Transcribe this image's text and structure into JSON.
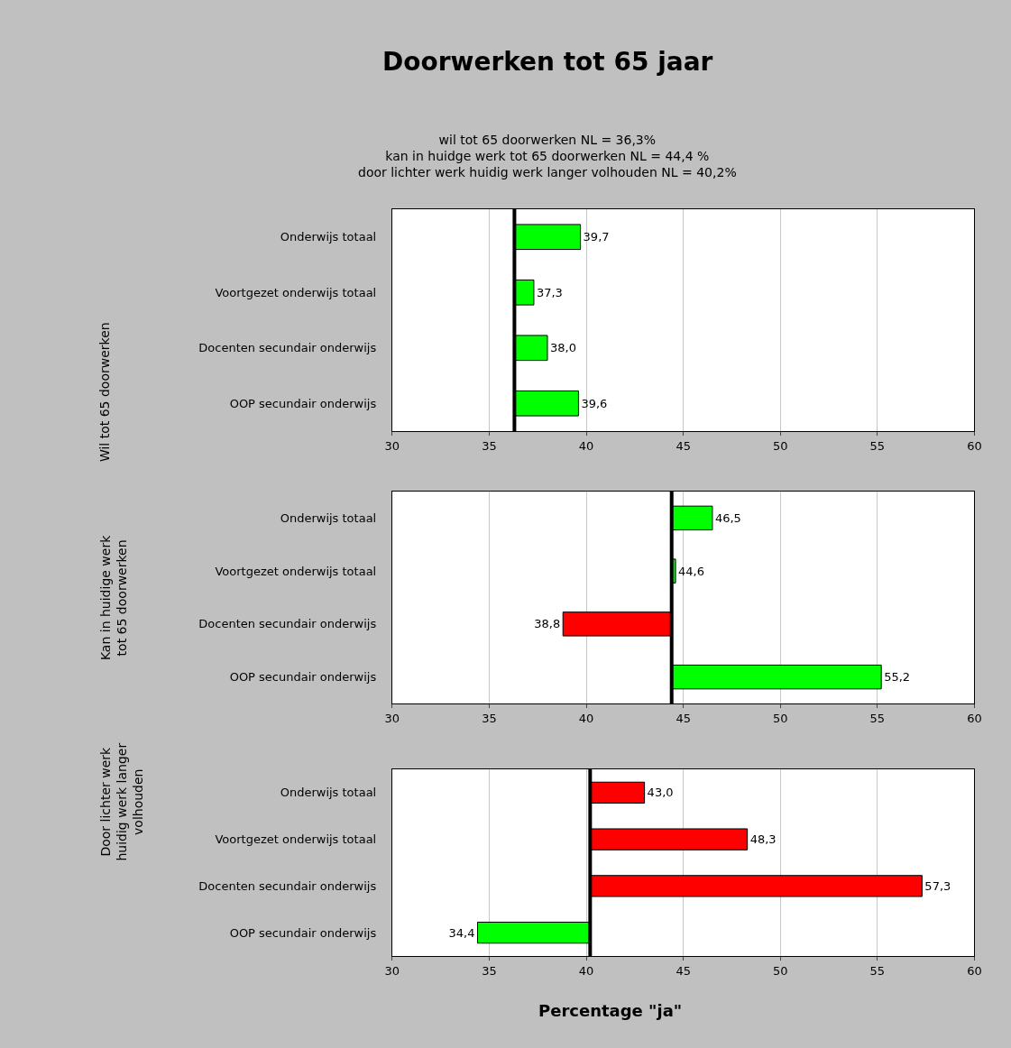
{
  "chart_data": [
    {
      "type": "bar",
      "orientation": "horizontal",
      "title": "Doorwerken tot 65 jaar",
      "subtitle": "wil tot 65 doorwerken NL = 36,3%\nkan in huidge werk tot 65 doorwerken NL = 44,4 %\ndoor lichter werk huidig werk langer volhouden NL = 40,2%",
      "ylabel": "Wil tot 65 doorwerken",
      "categories": [
        "Onderwijs totaal",
        "Voortgezet onderwijs totaal",
        "Docenten secundair onderwijs",
        "OOP secundair onderwijs"
      ],
      "base": [
        36.3,
        36.3,
        36.3,
        36.3
      ],
      "values": [
        3.4,
        1.0,
        1.7,
        3.3
      ],
      "colors": [
        "#00ff00",
        "#00ff00",
        "#00ff00",
        "#00ff00"
      ],
      "value_labels": [
        "39,7",
        "37,3",
        "38,0",
        "39,6"
      ],
      "xlim": [
        30,
        60
      ],
      "xticks": [
        30,
        35,
        40,
        45,
        50,
        55,
        60
      ],
      "grid": "x",
      "ref_lines": [
        {
          "axis": "x",
          "value": 36.3,
          "color": "#000000"
        }
      ]
    },
    {
      "type": "bar",
      "orientation": "horizontal",
      "ylabel": "Kan in huidige werk\ntot 65 doorwerken",
      "categories": [
        "Onderwijs totaal",
        "Voortgezet onderwijs totaal",
        "Docenten secundair onderwijs",
        "OOP secundair onderwijs"
      ],
      "base": [
        44.4,
        44.4,
        44.4,
        44.4
      ],
      "values": [
        2.1,
        0.2,
        -5.6,
        10.8
      ],
      "colors": [
        "#00ff00",
        "#00ff00",
        "#ff0000",
        "#00ff00"
      ],
      "value_labels": [
        "46,5",
        "44,6",
        "38,8",
        "55,2"
      ],
      "xlim": [
        30,
        60
      ],
      "xticks": [
        30,
        35,
        40,
        45,
        50,
        55,
        60
      ],
      "grid": "x",
      "ref_lines": [
        {
          "axis": "x",
          "value": 44.4,
          "color": "#000000"
        }
      ]
    },
    {
      "type": "bar",
      "orientation": "horizontal",
      "ylabel": "Door lichter werk\nhuidig werk langer\nvolhouden",
      "xlabel": "Percentage \"ja\"",
      "categories": [
        "Onderwijs totaal",
        "Voortgezet onderwijs totaal",
        "Docenten secundair onderwijs",
        "OOP secundair onderwijs"
      ],
      "base": [
        40.2,
        40.2,
        40.2,
        40.2
      ],
      "values": [
        2.8,
        8.1,
        17.1,
        -5.8
      ],
      "colors": [
        "#ff0000",
        "#ff0000",
        "#ff0000",
        "#00ff00"
      ],
      "value_labels": [
        "43,0",
        "48,3",
        "57,3",
        "34,4"
      ],
      "xlim": [
        30,
        60
      ],
      "xticks": [
        30,
        35,
        40,
        45,
        50,
        55,
        60
      ],
      "grid": "x",
      "ref_lines": [
        {
          "axis": "x",
          "value": 40.2,
          "color": "#000000"
        }
      ]
    }
  ]
}
